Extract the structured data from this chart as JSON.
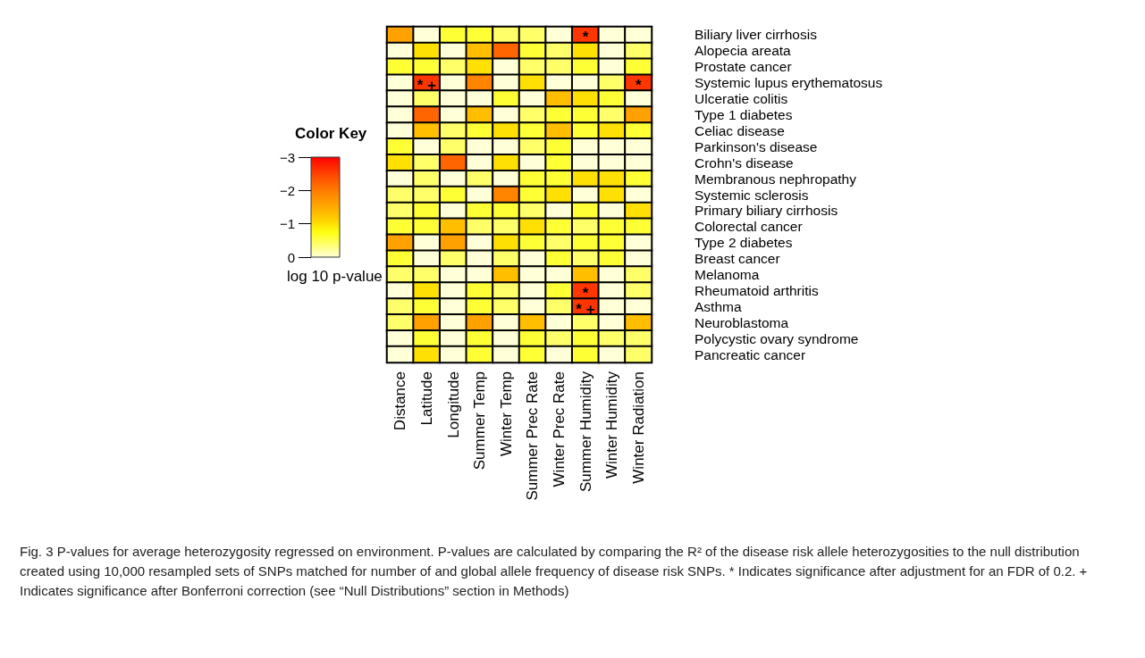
{
  "chart_data": {
    "type": "heatmap",
    "title": "Color Key",
    "clabel": "log 10 p-value",
    "categories": [
      "Distance",
      "Latitude",
      "Longitude",
      "Summer Temp",
      "Winter Temp",
      "Summer Prec Rate",
      "Winter Prec Rate",
      "Summer Humidity",
      "Winter Humidity",
      "Winter Radiation"
    ],
    "y_categories": [
      "Biliary liver cirrhosis",
      "Alopecia areata",
      "Prostate cancer",
      "Systemic lupus erythematosus",
      "Ulceratie colitis",
      "Type 1 diabetes",
      "Celiac disease",
      "Parkinson's disease",
      "Crohn's disease",
      "Membranous nephropathy",
      "Systemic sclerosis",
      "Primary biliary cirrhosis",
      "Colorectal cancer",
      "Type 2 diabetes",
      "Breast cancer",
      "Melanoma",
      "Rheumatoid arthritis",
      "Asthma",
      "Neuroblastoma",
      "Polycystic ovary syndrome",
      "Pancreatic cancer"
    ],
    "cells": [
      [
        -1.6,
        0,
        -0.6,
        -0.6,
        -0.4,
        -0.4,
        0,
        -2.6,
        0,
        0
      ],
      [
        0,
        -1.0,
        0,
        -1.3,
        -2.2,
        -0.6,
        -0.4,
        -1.0,
        0,
        -0.4
      ],
      [
        -0.6,
        -0.6,
        -0.4,
        -1.0,
        0,
        -0.4,
        -0.4,
        -0.6,
        0,
        -0.6
      ],
      [
        0,
        -2.6,
        0,
        -1.9,
        0,
        -1.0,
        0,
        0,
        -0.4,
        -2.6
      ],
      [
        0,
        -0.4,
        0,
        0,
        -0.6,
        0,
        -1.3,
        -1.0,
        -0.6,
        0
      ],
      [
        0,
        -2.2,
        0,
        -1.3,
        0,
        -0.4,
        -0.6,
        -0.6,
        -0.4,
        -1.6
      ],
      [
        0,
        -1.3,
        -0.4,
        -0.6,
        -1.0,
        -0.6,
        -1.3,
        -0.6,
        -1.0,
        -0.6
      ],
      [
        -0.6,
        0,
        -0.4,
        0,
        0,
        -0.4,
        -0.6,
        0,
        0,
        0
      ],
      [
        -1.0,
        -0.4,
        -2.2,
        0,
        -1.0,
        0,
        -0.6,
        0,
        0,
        0
      ],
      [
        0,
        -0.4,
        0,
        -0.4,
        0,
        -0.6,
        -0.6,
        -1.0,
        -1.0,
        -0.6
      ],
      [
        -0.4,
        -0.4,
        -0.6,
        0,
        -1.9,
        -0.6,
        -1.0,
        0,
        -1.0,
        0
      ],
      [
        -0.4,
        -0.6,
        0,
        -0.6,
        -0.6,
        -0.4,
        0,
        -0.6,
        0,
        -1.0
      ],
      [
        -0.6,
        -0.6,
        -1.3,
        -0.4,
        -0.4,
        -1.0,
        -0.6,
        -0.4,
        -0.6,
        -0.6
      ],
      [
        -1.6,
        0,
        -1.6,
        0,
        -1.0,
        -0.6,
        -0.4,
        -0.6,
        -0.6,
        0
      ],
      [
        -0.6,
        0,
        -0.4,
        0,
        -0.4,
        0,
        -0.6,
        -0.4,
        -0.6,
        0
      ],
      [
        -0.4,
        -0.4,
        0,
        0,
        -1.3,
        0,
        0,
        -1.3,
        0,
        -0.4
      ],
      [
        0,
        -1.0,
        0,
        -0.6,
        -0.4,
        0,
        -0.6,
        -2.6,
        0,
        -0.4
      ],
      [
        -0.4,
        -0.6,
        0,
        -0.6,
        -0.4,
        0,
        -0.4,
        -2.6,
        0,
        0
      ],
      [
        -0.4,
        -1.6,
        0,
        -1.6,
        0,
        -1.3,
        0,
        -0.4,
        0,
        -1.3
      ],
      [
        0,
        -0.6,
        0,
        -0.6,
        0,
        -0.6,
        -0.4,
        -0.6,
        -0.4,
        -0.4
      ],
      [
        0,
        -1.0,
        0,
        -0.6,
        0,
        -0.6,
        0,
        -0.6,
        0,
        -0.4
      ]
    ],
    "clim": [
      -3,
      0
    ],
    "cticks": [
      -3,
      -2,
      -1,
      0
    ],
    "cell_labels": [
      [
        null,
        null,
        null,
        null,
        null,
        null,
        null,
        "*",
        null,
        null
      ],
      [
        null,
        null,
        null,
        null,
        null,
        null,
        null,
        null,
        null,
        null
      ],
      [
        null,
        null,
        null,
        null,
        null,
        null,
        null,
        null,
        null,
        null
      ],
      [
        null,
        "* +",
        null,
        null,
        null,
        null,
        null,
        null,
        null,
        "*"
      ],
      [
        null,
        null,
        null,
        null,
        null,
        null,
        null,
        null,
        null,
        null
      ],
      [
        null,
        null,
        null,
        null,
        null,
        null,
        null,
        null,
        null,
        null
      ],
      [
        null,
        null,
        null,
        null,
        null,
        null,
        null,
        null,
        null,
        null
      ],
      [
        null,
        null,
        null,
        null,
        null,
        null,
        null,
        null,
        null,
        null
      ],
      [
        null,
        null,
        null,
        null,
        null,
        null,
        null,
        null,
        null,
        null
      ],
      [
        null,
        null,
        null,
        null,
        null,
        null,
        null,
        null,
        null,
        null
      ],
      [
        null,
        null,
        null,
        null,
        null,
        null,
        null,
        null,
        null,
        null
      ],
      [
        null,
        null,
        null,
        null,
        null,
        null,
        null,
        null,
        null,
        null
      ],
      [
        null,
        null,
        null,
        null,
        null,
        null,
        null,
        null,
        null,
        null
      ],
      [
        null,
        null,
        null,
        null,
        null,
        null,
        null,
        null,
        null,
        null
      ],
      [
        null,
        null,
        null,
        null,
        null,
        null,
        null,
        null,
        null,
        null
      ],
      [
        null,
        null,
        null,
        null,
        null,
        null,
        null,
        null,
        null,
        null
      ],
      [
        null,
        null,
        null,
        null,
        null,
        null,
        null,
        "*",
        null,
        null
      ],
      [
        null,
        null,
        null,
        null,
        null,
        null,
        null,
        "* +",
        null,
        null
      ],
      [
        null,
        null,
        null,
        null,
        null,
        null,
        null,
        null,
        null,
        null
      ],
      [
        null,
        null,
        null,
        null,
        null,
        null,
        null,
        null,
        null,
        null
      ],
      [
        null,
        null,
        null,
        null,
        null,
        null,
        null,
        null,
        null,
        null
      ]
    ],
    "annotations": [
      "Fig. 3 P-values for average heterozygosity regressed on environment. P-values are calculated by comparing the R² of the disease risk allele heterozygosities to the null distribution created using 10,000 resampled sets of SNPs matched for number of and global allele frequency of disease risk SNPs. * Indicates significance after adjustment for an FDR of 0.2. + Indicates significance after Bonferroni correction (see “Null Distributions” section in Methods)"
    ]
  }
}
